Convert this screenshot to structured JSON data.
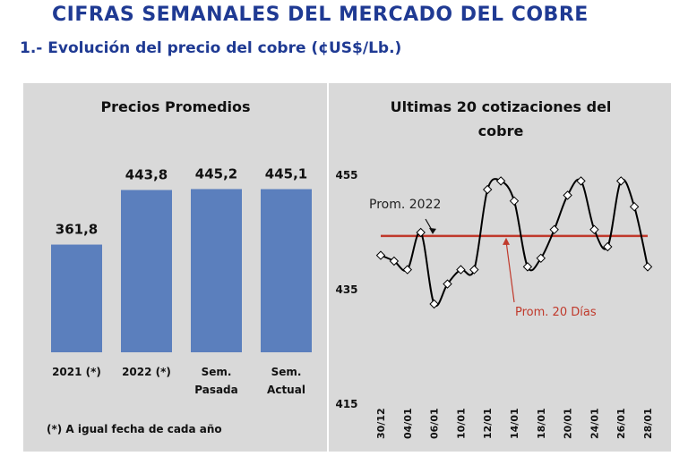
{
  "header": {
    "title": "CIFRAS SEMANALES DEL MERCADO DEL COBRE",
    "subtitle": "1.- Evolución del precio del cobre (¢US$/Lb.)"
  },
  "chart_data": [
    {
      "type": "bar",
      "title": "Precios Promedios",
      "categories": [
        "2021 (*)",
        "2022 (*)",
        "Sem. Pasada",
        "Sem. Actual"
      ],
      "category_lines": [
        [
          "2021 (*)"
        ],
        [
          "2022 (*)"
        ],
        [
          "Sem.",
          "Pasada"
        ],
        [
          "Sem.",
          "Actual"
        ]
      ],
      "values": [
        361.8,
        443.8,
        445.2,
        445.1
      ],
      "value_labels": [
        "361,8",
        "443,8",
        "445,2",
        "445,1"
      ],
      "bar_color": "#5b7fbd",
      "ylim": [
        200,
        470
      ],
      "footnote": "(*) A igual fecha de cada año"
    },
    {
      "type": "line",
      "title_lines": [
        "Ultimas 20 cotizaciones del",
        "cobre"
      ],
      "x": [
        "30/12",
        "03/01",
        "04/01",
        "05/01",
        "06/01",
        "07/01",
        "10/01",
        "11/01",
        "12/01",
        "13/01",
        "14/01",
        "17/01",
        "18/01",
        "19/01",
        "20/01",
        "21/01",
        "24/01",
        "25/01",
        "26/01",
        "27/01",
        "28/01"
      ],
      "x_tick_labels": [
        "30/12",
        "04/01",
        "06/01",
        "10/01",
        "12/01",
        "14/01",
        "18/01",
        "20/01",
        "24/01",
        "26/01",
        "28/01"
      ],
      "series": [
        {
          "values": [
            441.0,
            440.0,
            438.5,
            445.0,
            432.5,
            436.0,
            438.5,
            438.5,
            452.5,
            454.0,
            450.5,
            439.0,
            440.5,
            445.5,
            451.5,
            454.0,
            445.5,
            442.5,
            454.0,
            449.5,
            439.0
          ],
          "color": "#000000",
          "marker": "diamond"
        }
      ],
      "reference_line": {
        "value": 444.4,
        "color": "#c0392b"
      },
      "yticks": [
        455,
        435,
        415
      ],
      "ylim": [
        415,
        455
      ],
      "annotations": [
        "Prom. 2022",
        "Prom. 20 Días"
      ]
    }
  ]
}
